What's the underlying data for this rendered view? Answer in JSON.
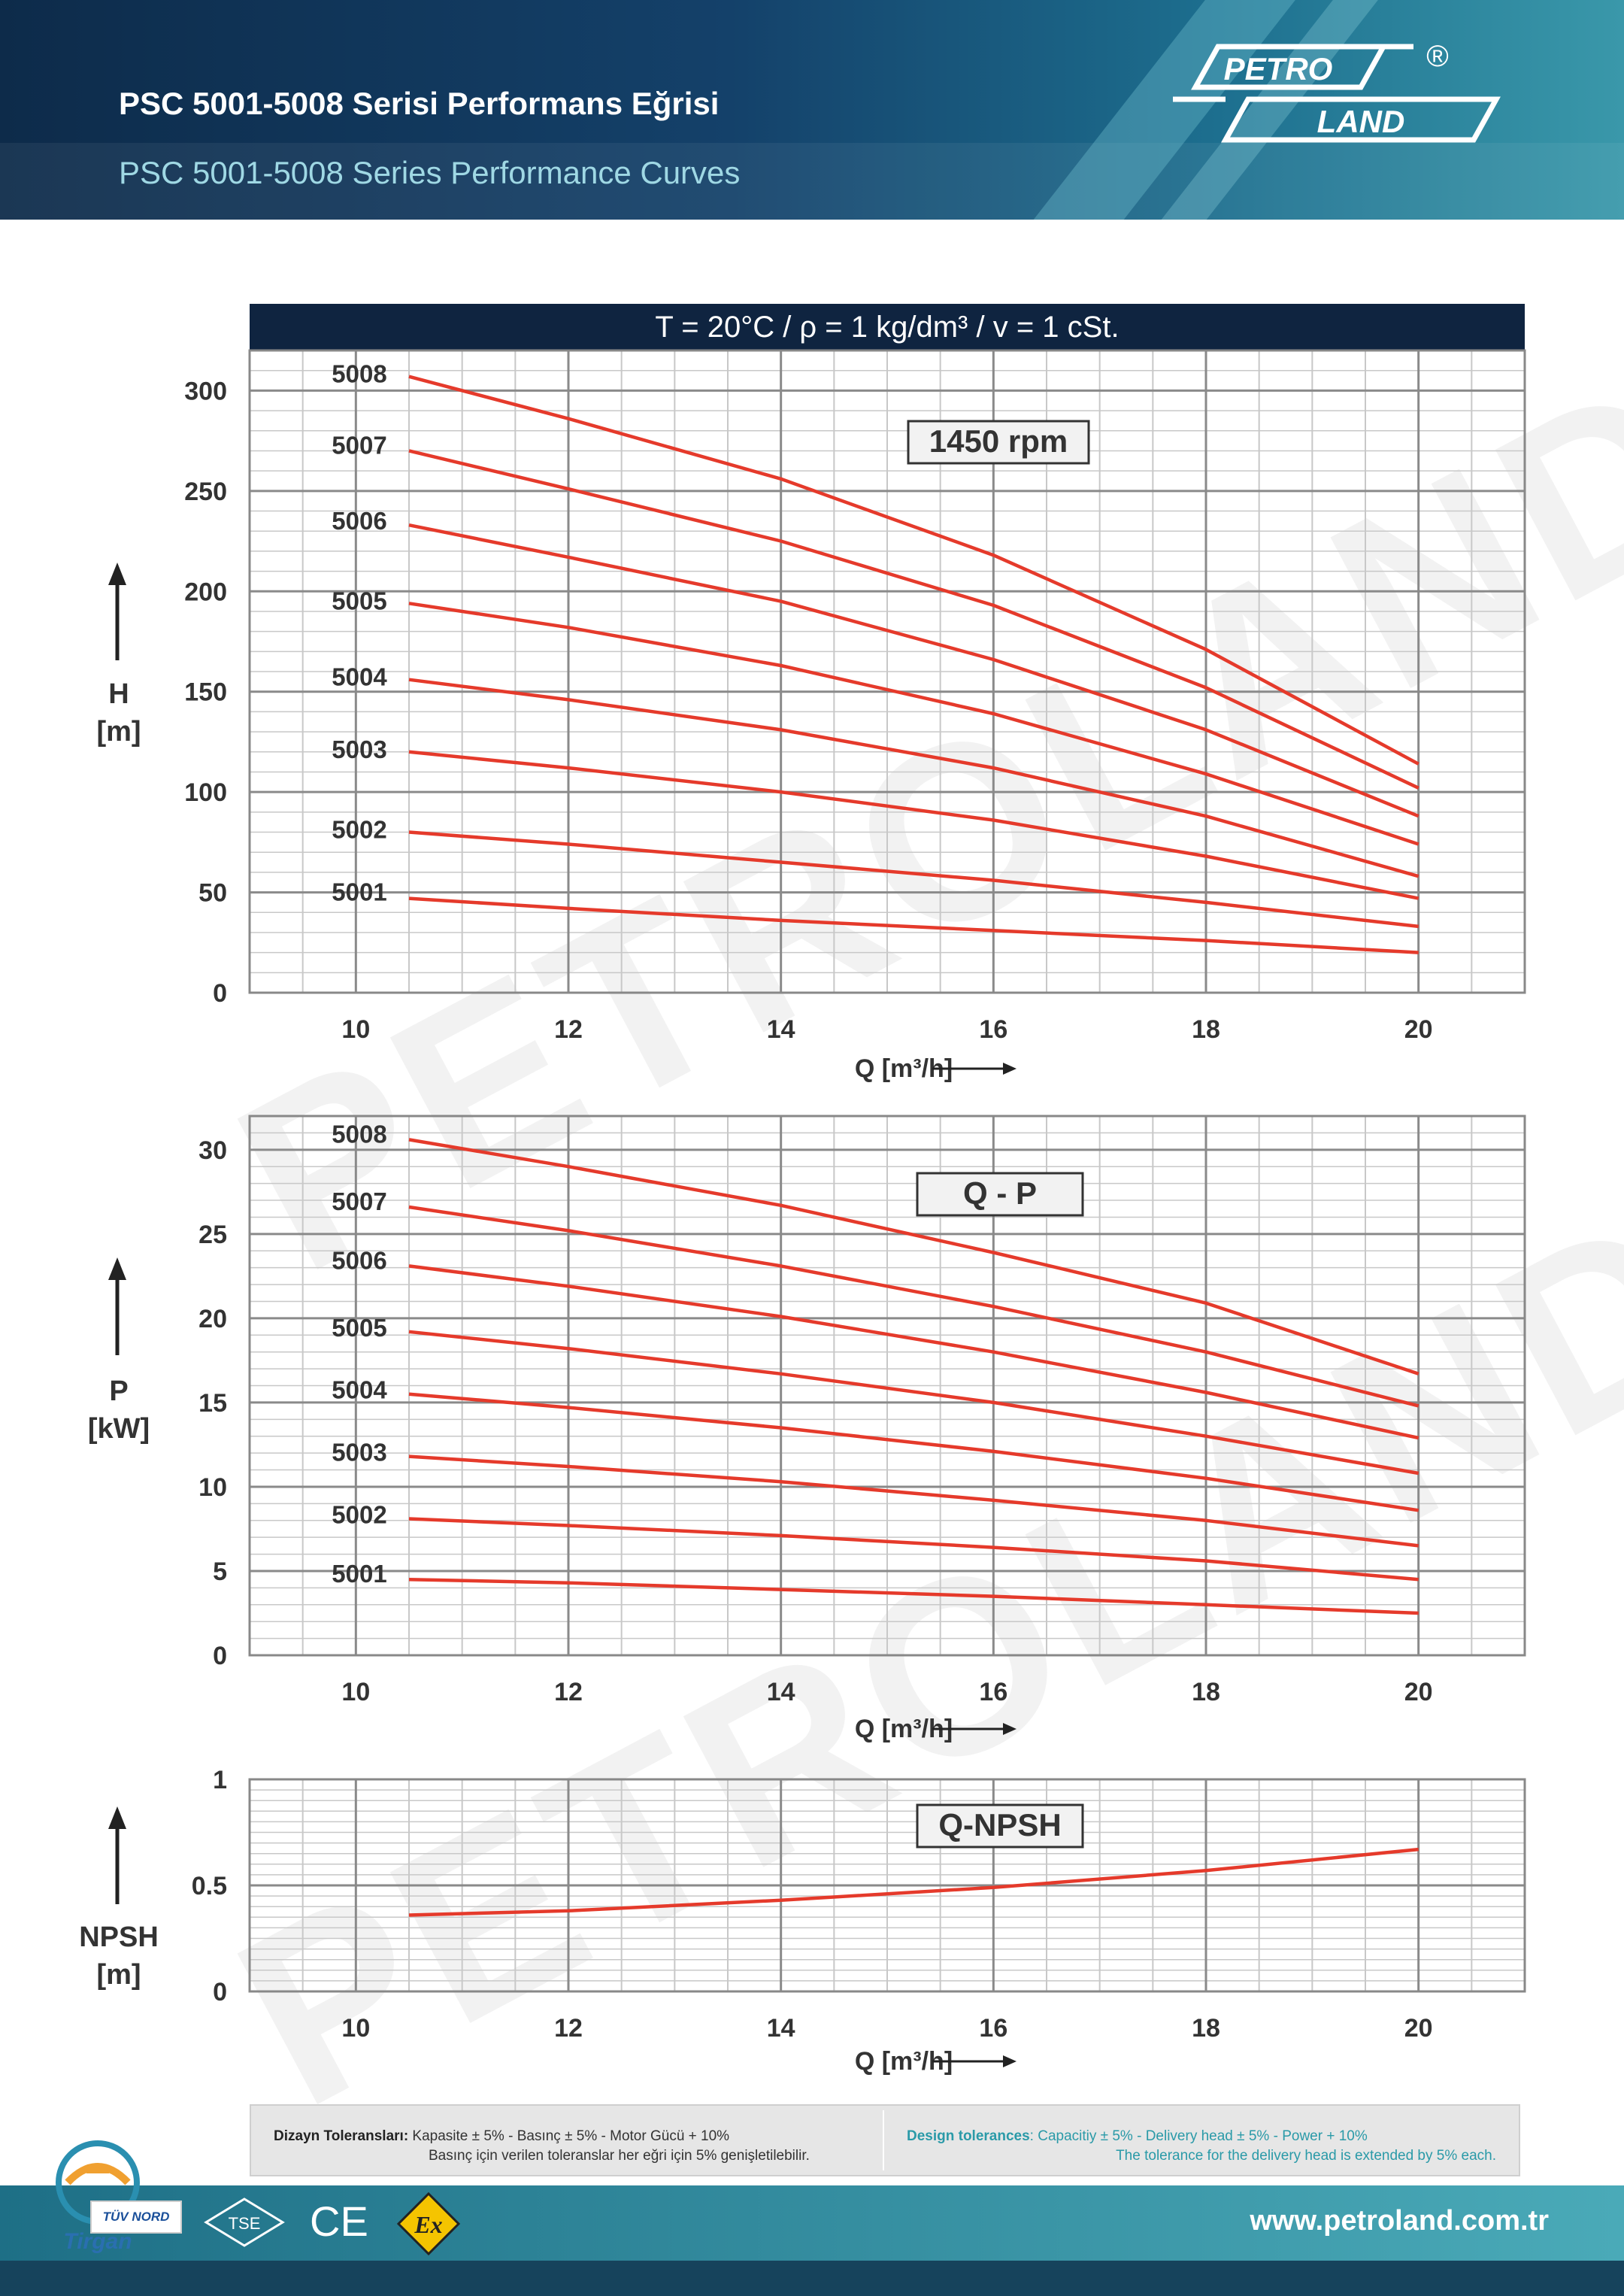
{
  "header": {
    "title_tr": "PSC 5001-5008 Serisi Performans Eğrisi",
    "title_en": "PSC 5001-5008 Series Performance Curves",
    "logo_text_top": "PETRO",
    "logo_text_bottom": "LAND",
    "logo_registered": "®"
  },
  "conditions": "T = 20°C   /   ρ = 1 kg/dm³   /   v = 1 cSt.",
  "watermark": "PETROLAND",
  "chart_data": [
    {
      "type": "line",
      "title": "1450 rpm",
      "ylabel": "H [m]",
      "xlabel": "Q [m³/h]",
      "xlim": [
        9,
        21
      ],
      "ylim": [
        0,
        320
      ],
      "xticks": [
        10,
        12,
        14,
        16,
        18,
        20
      ],
      "yticks": [
        0,
        50,
        100,
        150,
        200,
        250,
        300
      ],
      "grid": true,
      "series": [
        {
          "name": "5001",
          "x": [
            10.5,
            12,
            14,
            16,
            18,
            20
          ],
          "values": [
            47,
            42,
            36,
            31,
            26,
            20
          ]
        },
        {
          "name": "5002",
          "x": [
            10.5,
            12,
            14,
            16,
            18,
            20
          ],
          "values": [
            80,
            74,
            65,
            56,
            45,
            33
          ]
        },
        {
          "name": "5003",
          "x": [
            10.5,
            12,
            14,
            16,
            18,
            20
          ],
          "values": [
            120,
            112,
            100,
            86,
            68,
            47
          ]
        },
        {
          "name": "5004",
          "x": [
            10.5,
            12,
            14,
            16,
            18,
            20
          ],
          "values": [
            156,
            146,
            131,
            112,
            88,
            58
          ]
        },
        {
          "name": "5005",
          "x": [
            10.5,
            12,
            14,
            16,
            18,
            20
          ],
          "values": [
            194,
            182,
            163,
            139,
            109,
            74
          ]
        },
        {
          "name": "5006",
          "x": [
            10.5,
            12,
            14,
            16,
            18,
            20
          ],
          "values": [
            233,
            217,
            195,
            166,
            131,
            88
          ]
        },
        {
          "name": "5007",
          "x": [
            10.5,
            12,
            14,
            16,
            18,
            20
          ],
          "values": [
            270,
            251,
            225,
            193,
            152,
            102
          ]
        },
        {
          "name": "5008",
          "x": [
            10.5,
            12,
            14,
            16,
            18,
            20
          ],
          "values": [
            307,
            286,
            256,
            218,
            171,
            114
          ]
        }
      ]
    },
    {
      "type": "line",
      "title": "Q - P",
      "ylabel": "P [kW]",
      "xlabel": "Q [m³/h]",
      "xlim": [
        9,
        21
      ],
      "ylim": [
        0,
        32
      ],
      "xticks": [
        10,
        12,
        14,
        16,
        18,
        20
      ],
      "yticks": [
        0,
        5,
        10,
        15,
        20,
        25,
        30
      ],
      "grid": true,
      "series": [
        {
          "name": "5001",
          "x": [
            10.5,
            12,
            14,
            16,
            18,
            20
          ],
          "values": [
            4.5,
            4.3,
            3.9,
            3.5,
            3.0,
            2.5
          ]
        },
        {
          "name": "5002",
          "x": [
            10.5,
            12,
            14,
            16,
            18,
            20
          ],
          "values": [
            8.1,
            7.7,
            7.1,
            6.4,
            5.6,
            4.5
          ]
        },
        {
          "name": "5003",
          "x": [
            10.5,
            12,
            14,
            16,
            18,
            20
          ],
          "values": [
            11.8,
            11.2,
            10.3,
            9.2,
            8.0,
            6.5
          ]
        },
        {
          "name": "5004",
          "x": [
            10.5,
            12,
            14,
            16,
            18,
            20
          ],
          "values": [
            15.5,
            14.7,
            13.5,
            12.1,
            10.5,
            8.6
          ]
        },
        {
          "name": "5005",
          "x": [
            10.5,
            12,
            14,
            16,
            18,
            20
          ],
          "values": [
            19.2,
            18.2,
            16.7,
            15.0,
            13.0,
            10.8
          ]
        },
        {
          "name": "5006",
          "x": [
            10.5,
            12,
            14,
            16,
            18,
            20
          ],
          "values": [
            23.1,
            21.9,
            20.1,
            18.0,
            15.6,
            12.9
          ]
        },
        {
          "name": "5007",
          "x": [
            10.5,
            12,
            14,
            16,
            18,
            20
          ],
          "values": [
            26.6,
            25.2,
            23.1,
            20.7,
            18.0,
            14.8
          ]
        },
        {
          "name": "5008",
          "x": [
            10.5,
            12,
            14,
            16,
            18,
            20
          ],
          "values": [
            30.6,
            29.0,
            26.7,
            23.9,
            20.9,
            16.7
          ]
        }
      ]
    },
    {
      "type": "line",
      "title": "Q-NPSH",
      "ylabel": "NPSH [m]",
      "xlabel": "Q [m³/h]",
      "xlim": [
        9,
        21
      ],
      "ylim": [
        0,
        1
      ],
      "xticks": [
        10,
        12,
        14,
        16,
        18,
        20
      ],
      "yticks": [
        0,
        0.5,
        1
      ],
      "grid": true,
      "series": [
        {
          "x": [
            10.5,
            12,
            14,
            16,
            18,
            20
          ],
          "values": [
            0.36,
            0.38,
            0.43,
            0.49,
            0.57,
            0.67
          ]
        }
      ]
    }
  ],
  "axis_y_labels": [
    {
      "line1": "H",
      "line2": "[m]"
    },
    {
      "line1": "P",
      "line2": "[kW]"
    },
    {
      "line1": "NPSH",
      "line2": "[m]"
    }
  ],
  "tolerances": {
    "tr_label": "Dizayn Toleransları:",
    "tr_text": " Kapasite  ± 5% - Basınç  ± 5% - Motor Gücü + 10%",
    "tr_line2": "Basınç için verilen toleranslar her eğri için 5% genişletilebilir.",
    "en_label": "Design tolerances",
    "en_text": ": Capacitiy  ± 5% - Delivery head  ± 5% - Power + 10%",
    "en_line2": "The tolerance for the delivery head is extended by 5% each."
  },
  "footer": {
    "url": "www.petroland.com.tr",
    "cert_tuv": "TÜV NORD",
    "cert_tse": "TSE",
    "cert_ce": "CE",
    "cert_ex": "Ex",
    "cert_logo_text": "Tirgan"
  },
  "colors": {
    "curve": "#e53a2b",
    "grid_major": "#8a8a8a",
    "grid_minor": "#c8c8c8",
    "header_dark": "#0d2b4a",
    "accent_teal": "#3a98aa"
  }
}
